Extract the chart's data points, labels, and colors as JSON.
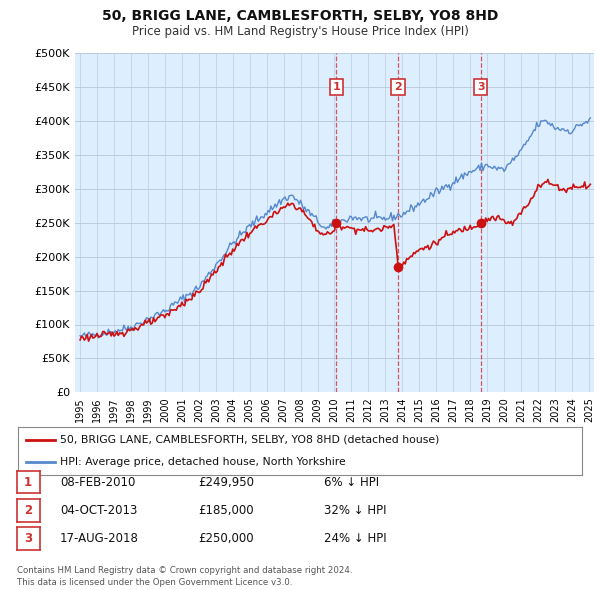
{
  "title": "50, BRIGG LANE, CAMBLESFORTH, SELBY, YO8 8HD",
  "subtitle": "Price paid vs. HM Land Registry's House Price Index (HPI)",
  "ylim": [
    0,
    500000
  ],
  "yticks": [
    0,
    50000,
    100000,
    150000,
    200000,
    250000,
    300000,
    350000,
    400000,
    450000,
    500000
  ],
  "ytick_labels": [
    "£0",
    "£50K",
    "£100K",
    "£150K",
    "£200K",
    "£250K",
    "£300K",
    "£350K",
    "£400K",
    "£450K",
    "£500K"
  ],
  "hpi_color": "#5588cc",
  "price_color": "#cc1111",
  "dashed_color": "#cc3333",
  "chart_bg": "#ddeeff",
  "background_color": "#ffffff",
  "grid_color": "#bbccdd",
  "legend_label_price": "50, BRIGG LANE, CAMBLESFORTH, SELBY, YO8 8HD (detached house)",
  "legend_label_hpi": "HPI: Average price, detached house, North Yorkshire",
  "transactions": [
    {
      "num": 1,
      "date": "08-FEB-2010",
      "price": "£249,950",
      "pct": "6% ↓ HPI",
      "x_year": 2010.11
    },
    {
      "num": 2,
      "date": "04-OCT-2013",
      "price": "£185,000",
      "pct": "32% ↓ HPI",
      "x_year": 2013.75
    },
    {
      "num": 3,
      "date": "17-AUG-2018",
      "price": "£250,000",
      "pct": "24% ↓ HPI",
      "x_year": 2018.63
    }
  ],
  "transaction_values": [
    249950,
    185000,
    250000
  ],
  "footnote": "Contains HM Land Registry data © Crown copyright and database right 2024.\nThis data is licensed under the Open Government Licence v3.0.",
  "xlim_min": 1994.7,
  "xlim_max": 2025.3
}
